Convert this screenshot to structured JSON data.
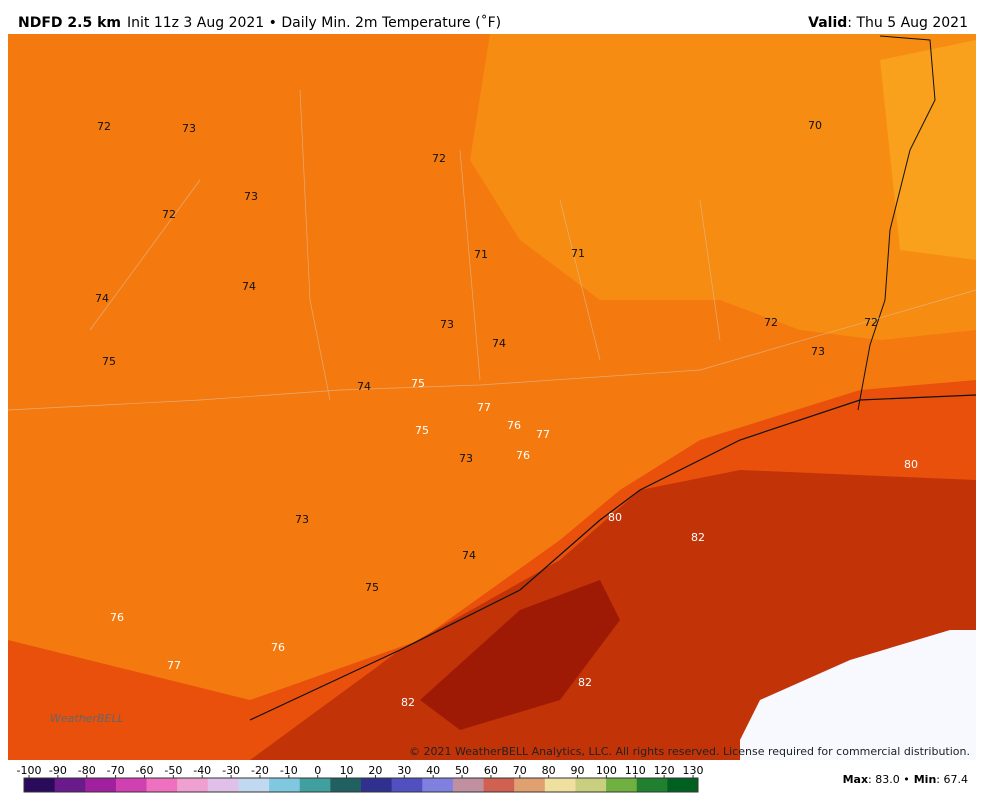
{
  "header": {
    "model": "NDFD 2.5 km",
    "description": "Init 11z 3 Aug 2021 • Daily Min. 2m Temperature (˚F)",
    "valid_label": "Valid",
    "valid_date": ": Thu 5 Aug 2021"
  },
  "map": {
    "station_values": [
      72,
      73,
      72,
      70,
      73,
      72,
      71,
      71,
      74,
      74,
      73,
      74,
      72,
      72,
      73,
      75,
      74,
      75,
      77,
      76,
      77,
      75,
      73,
      76,
      80,
      80,
      82,
      73,
      74,
      75,
      76,
      76,
      77,
      82,
      82
    ],
    "copyright": "© 2021 WeatherBELL Analytics, LLC. All rights reserved. License required for commercial distribution.",
    "logo": "WeatherBELL"
  },
  "colorbar": {
    "ticks": [
      -100,
      -90,
      -80,
      -70,
      -60,
      -50,
      -40,
      -30,
      -20,
      -10,
      0,
      10,
      20,
      30,
      40,
      50,
      60,
      70,
      80,
      90,
      100,
      110,
      120,
      130
    ]
  },
  "footer": {
    "max_label": "Max",
    "max_value": ": 83.0 •",
    "min_label": "Min",
    "min_value": ": 67.4"
  }
}
